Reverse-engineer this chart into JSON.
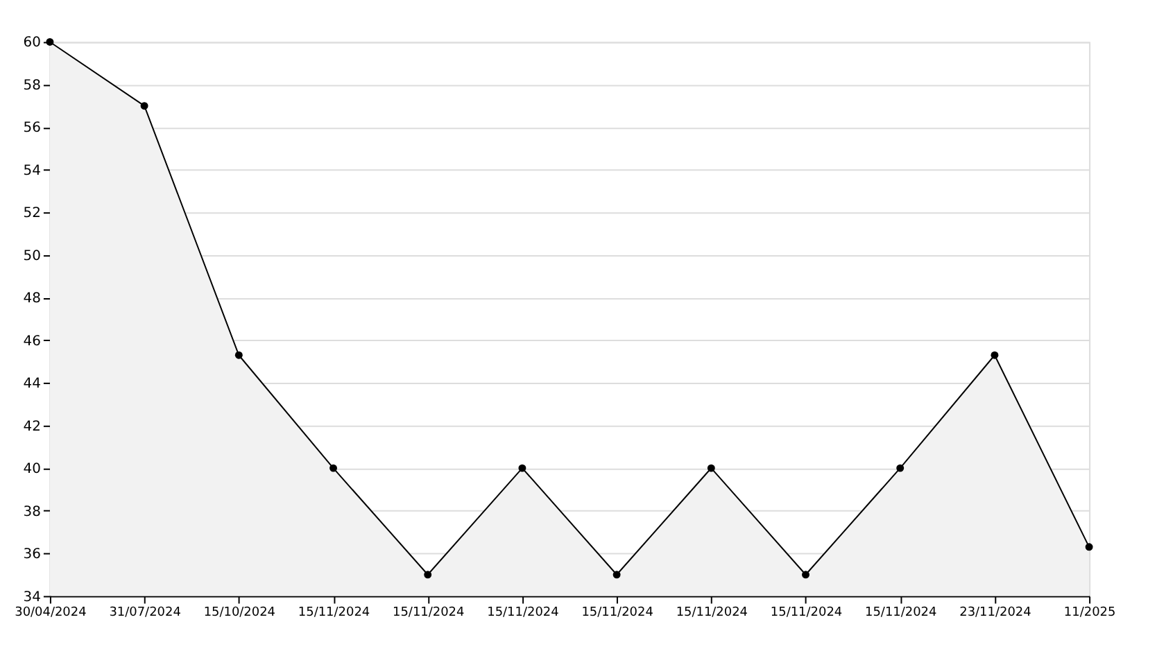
{
  "chart_data": {
    "type": "area",
    "categories": [
      "30/04/2024",
      "31/07/2024",
      "15/10/2024",
      "15/11/2024",
      "15/11/2024",
      "15/11/2024",
      "15/11/2024",
      "15/11/2024",
      "15/11/2024",
      "15/11/2024",
      "23/11/2024",
      "11/2025"
    ],
    "series": [
      {
        "color": "#f2f2f2",
        "values": [
          60,
          57,
          45.3,
          40,
          35,
          40,
          35,
          40,
          35,
          40,
          45.3,
          36.3
        ]
      }
    ],
    "ylim": [
      34,
      60
    ],
    "yticks": [
      34,
      36,
      38,
      40,
      42,
      44,
      46,
      48,
      50,
      52,
      54,
      56,
      58,
      60
    ],
    "grid": "y",
    "marker": "circle",
    "line_style": "solid"
  }
}
